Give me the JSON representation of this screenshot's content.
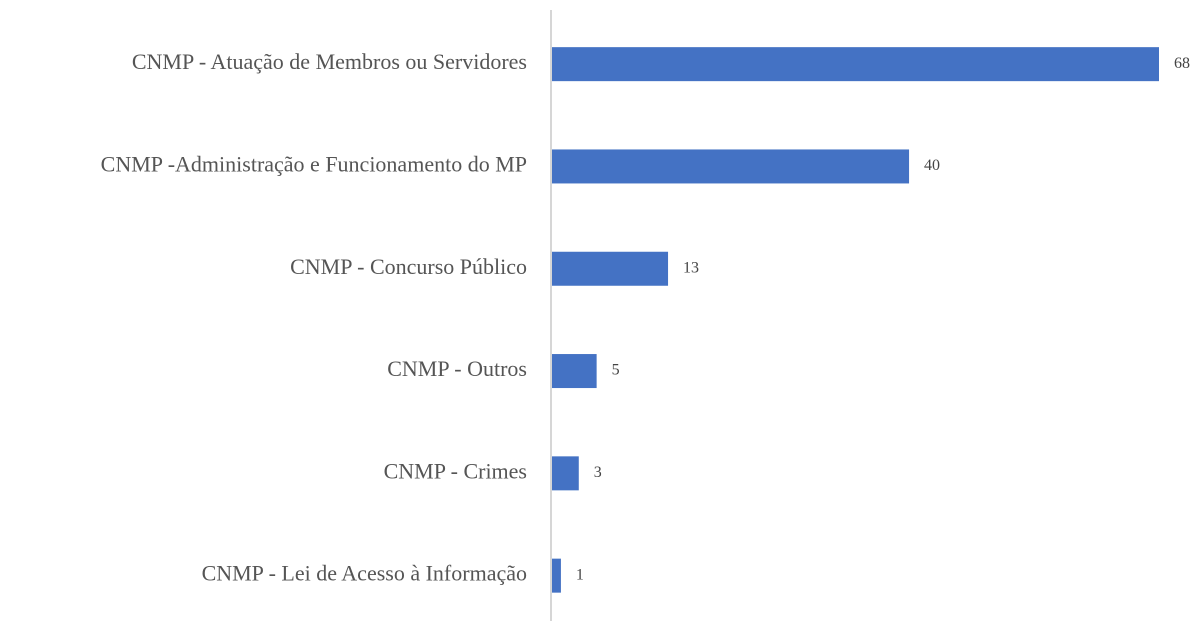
{
  "chart_data": {
    "type": "bar",
    "orientation": "horizontal",
    "categories": [
      "CNMP - Atuação de Membros ou Servidores",
      "CNMP -Administração e Funcionamento do MP",
      "CNMP - Concurso Público",
      "CNMP - Outros",
      "CNMP - Crimes",
      "CNMP - Lei de Acesso à Informação"
    ],
    "values": [
      68,
      40,
      13,
      5,
      3,
      1
    ],
    "color": "#4472c4"
  }
}
